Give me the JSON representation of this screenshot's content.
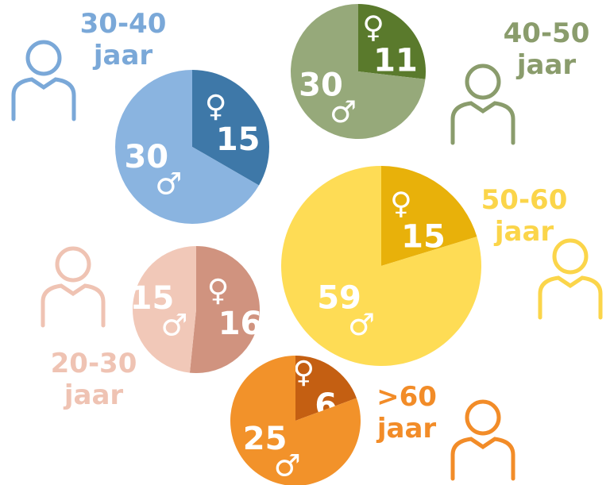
{
  "chart_data": [
    {
      "type": "pie",
      "title": "30-40 jaar",
      "categories": [
        "♀",
        "♂"
      ],
      "values": [
        15,
        30
      ],
      "colors": [
        "#3e78a8",
        "#8ab4e0"
      ],
      "title_color": "#7aa8d8"
    },
    {
      "type": "pie",
      "title": "40-50 jaar",
      "categories": [
        "♀",
        "♂"
      ],
      "values": [
        11,
        30
      ],
      "colors": [
        "#5a7a2c",
        "#96a97a"
      ],
      "title_color": "#8a9c6c"
    },
    {
      "type": "pie",
      "title": "50-60 jaar",
      "categories": [
        "♀",
        "♂"
      ],
      "values": [
        15,
        59
      ],
      "colors": [
        "#e8b10a",
        "#fedc55"
      ],
      "title_color": "#fbd54a"
    },
    {
      "type": "pie",
      "title": "20-30 jaar",
      "categories": [
        "♀",
        "♂"
      ],
      "values": [
        16,
        15
      ],
      "colors": [
        "#d0937f",
        "#f1c8b8"
      ],
      "title_color": "#efc3b3"
    },
    {
      "type": "pie",
      "title": ">60 jaar",
      "categories": [
        "♀",
        "♂"
      ],
      "values": [
        6,
        25
      ],
      "colors": [
        "#c45f12",
        "#f2922a"
      ],
      "title_color": "#f28c28"
    }
  ]
}
